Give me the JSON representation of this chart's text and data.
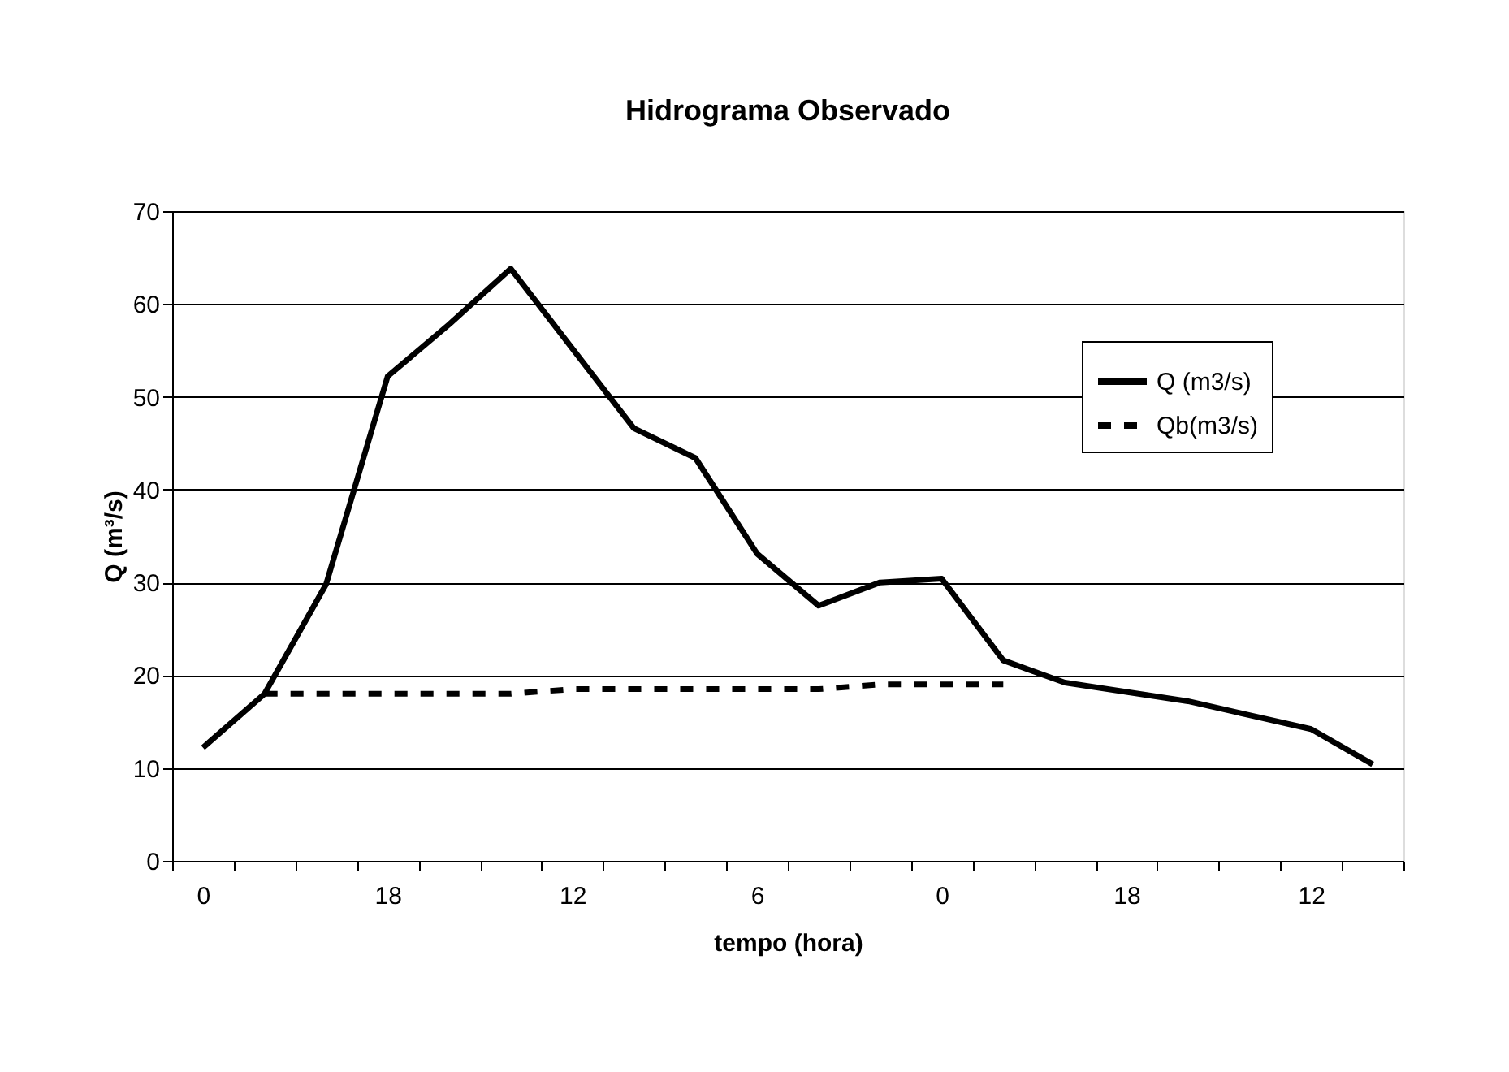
{
  "chart_data": {
    "type": "line",
    "title": "Hidrograma Observado",
    "xlabel": "tempo (hora)",
    "ylabel": "Q (m³/s)",
    "categories": [
      "0",
      null,
      null,
      "18",
      null,
      null,
      "12",
      null,
      null,
      "6",
      null,
      null,
      "0",
      null,
      null,
      "18",
      null,
      null,
      "12",
      null
    ],
    "series": [
      {
        "name": "Q (m3/s)",
        "color": "#000000",
        "line_style": "solid",
        "values": [
          12.2,
          18,
          29.8,
          52.2,
          57.8,
          63.8,
          55.2,
          46.6,
          43.4,
          33.1,
          27.5,
          30,
          30.4,
          21.6,
          19.2,
          18.2,
          17.2,
          15.7,
          14.2,
          10.4
        ]
      },
      {
        "name": "Qb(m3/s)",
        "color": "#000000",
        "line_style": "dashed",
        "values": [
          null,
          18,
          18,
          18,
          18,
          18,
          18.5,
          18.5,
          18.5,
          18.5,
          18.5,
          19,
          19,
          19,
          null,
          null,
          null,
          null,
          null,
          null
        ]
      }
    ],
    "ylim": [
      0,
      70
    ],
    "yticks": [
      0,
      10,
      20,
      30,
      40,
      50,
      60,
      70
    ],
    "grid": "y",
    "legend": "top right",
    "marker": "none"
  }
}
